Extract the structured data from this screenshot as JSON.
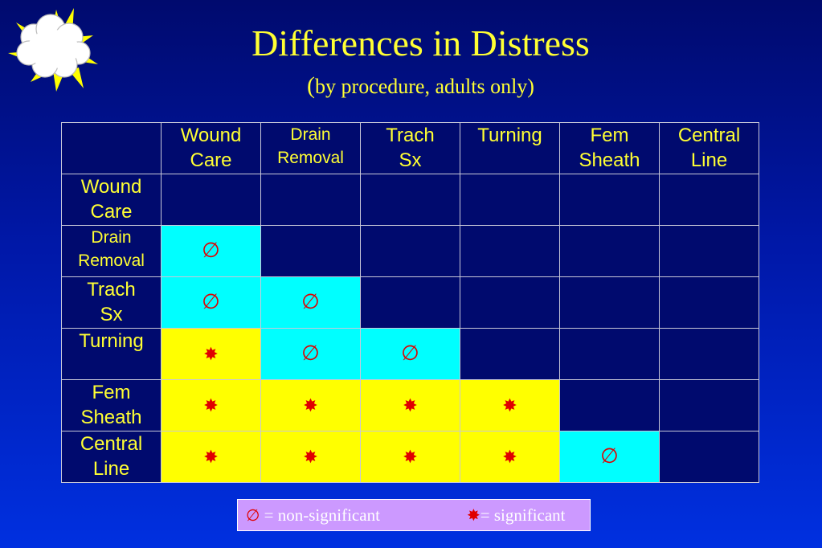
{
  "slide": {
    "title": "Differences in Distress",
    "subtitle_paren": "(",
    "subtitle_rest": "by procedure, adults only)"
  },
  "symbols": {
    "nonsig": "∅",
    "sig": "✸"
  },
  "table": {
    "columns": [
      {
        "line1": "Wound",
        "line2": "Care"
      },
      {
        "line1": "Drain",
        "line2": "Removal"
      },
      {
        "line1": "Trach",
        "line2": "Sx"
      },
      {
        "line1": "Turning",
        "line2": ""
      },
      {
        "line1": "Fem",
        "line2": "Sheath"
      },
      {
        "line1": "Central",
        "line2": "Line"
      }
    ],
    "rows": [
      {
        "line1": "Wound",
        "line2": "Care",
        "cells": [
          "",
          "",
          "",
          "",
          "",
          ""
        ]
      },
      {
        "line1": "Drain",
        "line2": "Removal",
        "cells": [
          "ns",
          "",
          "",
          "",
          "",
          ""
        ]
      },
      {
        "line1": "Trach",
        "line2": "Sx",
        "cells": [
          "ns",
          "ns",
          "",
          "",
          "",
          ""
        ]
      },
      {
        "line1": "Turning",
        "line2": "",
        "cells": [
          "sig",
          "ns",
          "ns",
          "",
          "",
          ""
        ]
      },
      {
        "line1": "Fem",
        "line2": "Sheath",
        "cells": [
          "sig",
          "sig",
          "sig",
          "sig",
          "",
          ""
        ]
      },
      {
        "line1": "Central",
        "line2": "Line",
        "cells": [
          "sig",
          "sig",
          "sig",
          "sig",
          "ns",
          ""
        ]
      }
    ]
  },
  "colors": {
    "nonsig_bg": "#00ffff",
    "sig_bg": "#ffff00",
    "empty_bg": "#000a6e",
    "symbol": "#e00000"
  },
  "legend": {
    "nonsig_label": " = non-significant",
    "sig_label": "= significant"
  }
}
